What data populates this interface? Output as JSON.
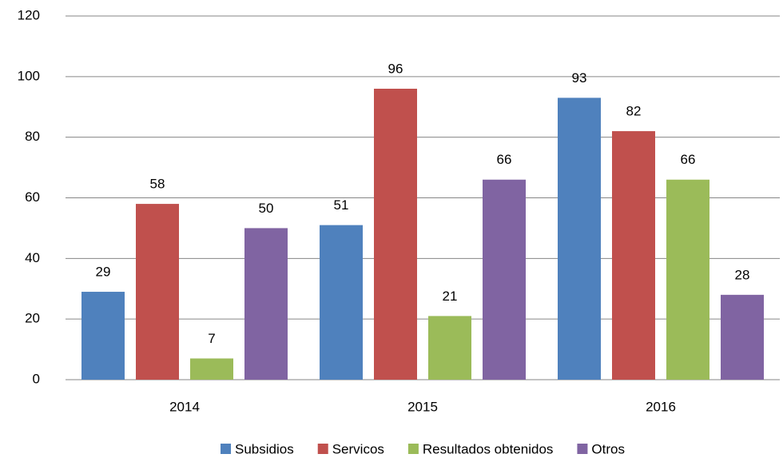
{
  "chart_data": {
    "type": "bar",
    "categories": [
      "2014",
      "2015",
      "2016"
    ],
    "series": [
      {
        "name": "Subsidios",
        "color": "#4f81bd",
        "values": [
          29,
          51,
          93
        ]
      },
      {
        "name": "Servicos",
        "color": "#c0504d",
        "values": [
          58,
          96,
          82
        ]
      },
      {
        "name": "Resultados obtenidos",
        "color": "#9bbb59",
        "values": [
          7,
          21,
          66
        ]
      },
      {
        "name": "Otros",
        "color": "#8064a2",
        "values": [
          50,
          66,
          28
        ]
      }
    ],
    "ylim": [
      0,
      120
    ],
    "yticks": [
      0,
      20,
      40,
      60,
      80,
      100,
      120
    ],
    "grid": true,
    "legend": "bottom"
  }
}
